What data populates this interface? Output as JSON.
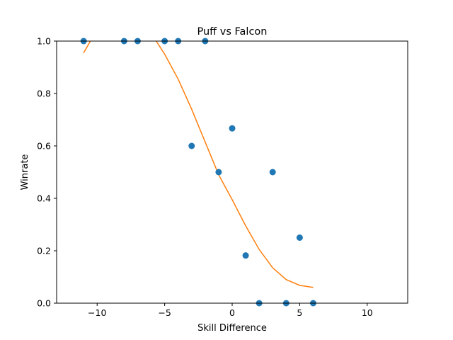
{
  "chart_data": {
    "type": "scatter",
    "title": "Puff vs Falcon",
    "xlabel": "Skill Difference",
    "ylabel": "Winrate",
    "xlim": [
      -13,
      13
    ],
    "ylim": [
      0,
      1
    ],
    "xticks": [
      -10,
      -5,
      0,
      5,
      10
    ],
    "xtick_labels": [
      "−10",
      "−5",
      "0",
      "5",
      "10"
    ],
    "yticks": [
      0,
      0.2,
      0.4,
      0.6,
      0.8,
      1.0
    ],
    "ytick_labels": [
      "0.0",
      "0.2",
      "0.4",
      "0.6",
      "0.8",
      "1.0"
    ],
    "grid": false,
    "legend": "none",
    "series": [
      {
        "kind": "scatter",
        "color": "#1f77b4",
        "points": [
          {
            "x": -11,
            "y": 1.0
          },
          {
            "x": -8,
            "y": 1.0
          },
          {
            "x": -7,
            "y": 1.0
          },
          {
            "x": -5,
            "y": 1.0
          },
          {
            "x": -4,
            "y": 1.0
          },
          {
            "x": -3,
            "y": 0.6
          },
          {
            "x": -2,
            "y": 1.0
          },
          {
            "x": -1,
            "y": 0.5
          },
          {
            "x": 0,
            "y": 0.667
          },
          {
            "x": 1,
            "y": 0.182
          },
          {
            "x": 2,
            "y": 0.0
          },
          {
            "x": 3,
            "y": 0.5
          },
          {
            "x": 4,
            "y": 0.0
          },
          {
            "x": 5,
            "y": 0.25
          },
          {
            "x": 6,
            "y": 0.0
          }
        ]
      },
      {
        "kind": "line",
        "color": "#ff7f0e",
        "points": [
          {
            "x": -11,
            "y": 0.955
          },
          {
            "x": -10.5,
            "y": 1.0
          },
          {
            "x": -10,
            "y": 1.04
          },
          {
            "x": -9,
            "y": 1.1
          },
          {
            "x": -8,
            "y": 1.13
          },
          {
            "x": -7,
            "y": 1.1
          },
          {
            "x": -6,
            "y": 1.03
          },
          {
            "x": -5,
            "y": 0.95
          },
          {
            "x": -4,
            "y": 0.855
          },
          {
            "x": -3,
            "y": 0.74
          },
          {
            "x": -2,
            "y": 0.615
          },
          {
            "x": -1,
            "y": 0.49
          },
          {
            "x": 0,
            "y": 0.395
          },
          {
            "x": 1,
            "y": 0.295
          },
          {
            "x": 2,
            "y": 0.205
          },
          {
            "x": 3,
            "y": 0.135
          },
          {
            "x": 4,
            "y": 0.09
          },
          {
            "x": 5,
            "y": 0.068
          },
          {
            "x": 6,
            "y": 0.06
          }
        ]
      }
    ]
  }
}
